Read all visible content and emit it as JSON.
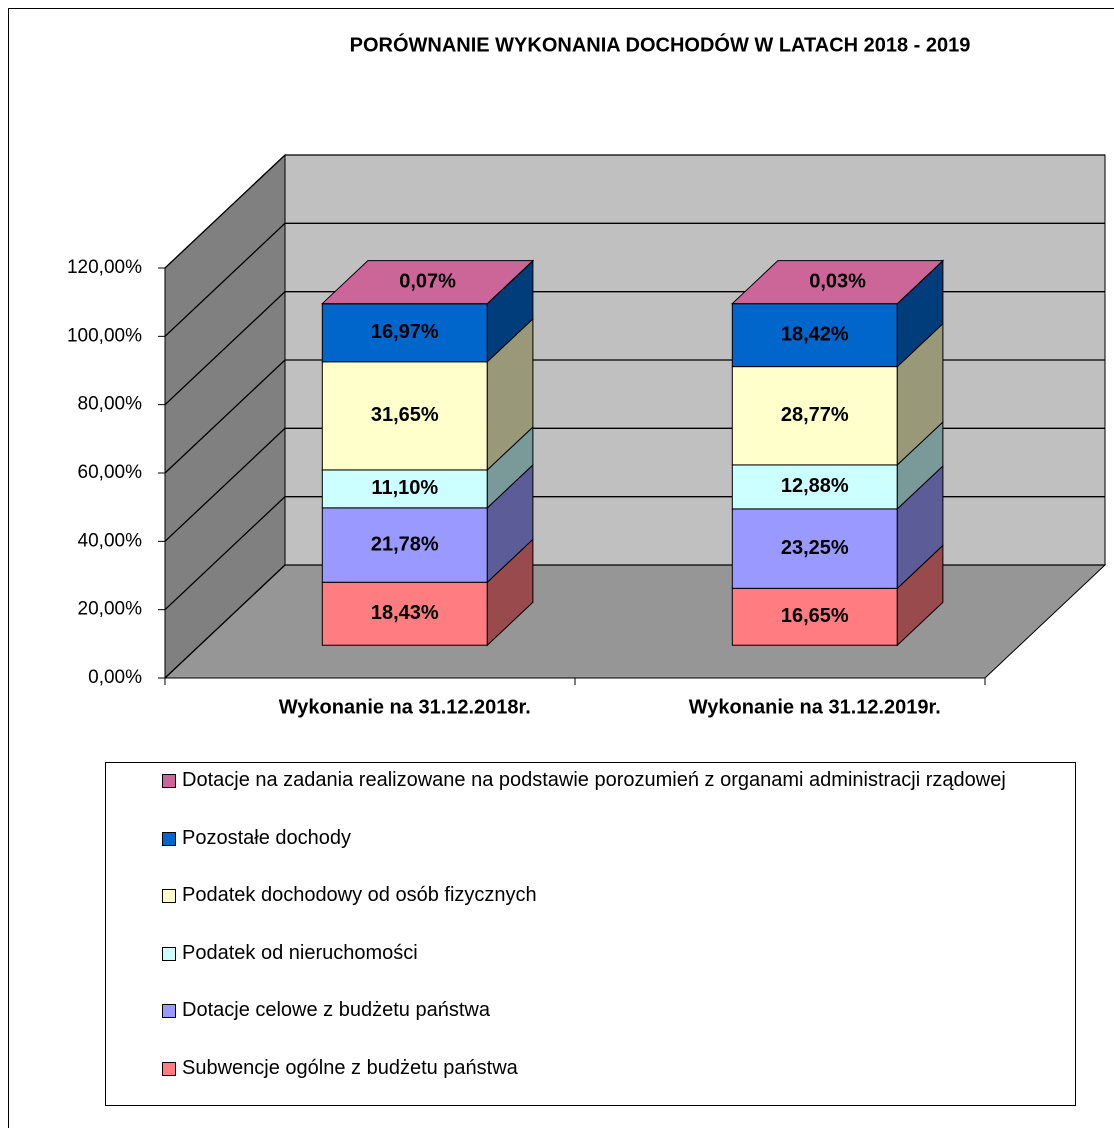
{
  "chart_data": {
    "type": "bar3d_stacked",
    "title": "PORÓWNANIE WYKONANIA DOCHODÓW W LATACH 2018 - 2019",
    "categories": [
      "Wykonanie na 31.12.2018r.",
      "Wykonanie na 31.12.2019r."
    ],
    "series": [
      {
        "name": "Subwencje ogólne z budżetu państwa",
        "color": "#ff7c80",
        "values": [
          18.43,
          16.65
        ],
        "value_labels": [
          "18,43%",
          "16,65%"
        ]
      },
      {
        "name": "Dotacje celowe z budżetu państwa",
        "color": "#9999ff",
        "values": [
          21.78,
          23.25
        ],
        "value_labels": [
          "21,78%",
          "23,25%"
        ]
      },
      {
        "name": "Podatek od nieruchomości",
        "color": "#ccffff",
        "values": [
          11.1,
          12.88
        ],
        "value_labels": [
          "11,10%",
          "12,88%"
        ]
      },
      {
        "name": "Podatek dochodowy od osób fizycznych",
        "color": "#ffffcc",
        "values": [
          31.65,
          28.77
        ],
        "value_labels": [
          "31,65%",
          "28,77%"
        ]
      },
      {
        "name": "Pozostałe dochody",
        "color": "#0066cc",
        "values": [
          16.97,
          18.42
        ],
        "value_labels": [
          "16,97%",
          "18,42%"
        ]
      },
      {
        "name": "Dotacje na zadania realizowane na podstawie porozumień z organami administracji rządowej",
        "color": "#cc6699",
        "values": [
          0.07,
          0.03
        ],
        "value_labels": [
          "0,07%",
          "0,03%"
        ]
      }
    ],
    "ylim": [
      0,
      120
    ],
    "yticks": [
      {
        "value": 0,
        "label": "0,00%"
      },
      {
        "value": 20,
        "label": "20,00%"
      },
      {
        "value": 40,
        "label": "40,00%"
      },
      {
        "value": 60,
        "label": "60,00%"
      },
      {
        "value": 80,
        "label": "80,00%"
      },
      {
        "value": 100,
        "label": "100,00%"
      },
      {
        "value": 120,
        "label": "120,00%"
      }
    ],
    "grid": true
  }
}
